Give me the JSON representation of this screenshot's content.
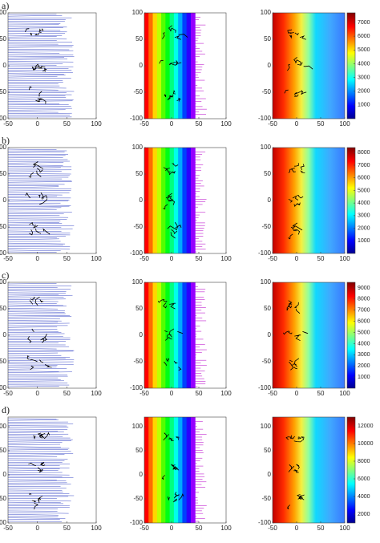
{
  "rows": [
    {
      "label": "a)",
      "panels": [
        {
          "xlim": [
            -50,
            100
          ],
          "ylim": [
            -100,
            100
          ],
          "xticks": [
            -50,
            0,
            50,
            100
          ],
          "yticks": [
            -100,
            -50,
            0,
            50,
            100
          ]
        },
        {
          "xlim": [
            -50,
            100
          ],
          "ylim": [
            -100,
            100
          ],
          "xticks": [
            -50,
            0,
            50,
            100
          ],
          "yticks": [
            -100,
            -50,
            0,
            50,
            100
          ]
        },
        {
          "xlim": [
            -50,
            100
          ],
          "ylim": [
            -100,
            100
          ],
          "xticks": [
            -50,
            0,
            50,
            100
          ],
          "yticks": [
            -100,
            -50,
            0,
            50,
            100
          ],
          "colorbar": {
            "clim": [
              0,
              7700
            ],
            "ticks": [
              1000,
              2000,
              3000,
              4000,
              5000,
              6000,
              7000
            ]
          }
        }
      ]
    },
    {
      "label": "b)",
      "panels": [
        {
          "xlim": [
            -50,
            100
          ],
          "ylim": [
            -100,
            100
          ],
          "xticks": [
            -50,
            0,
            50,
            100
          ],
          "yticks": [
            -100,
            -50,
            0,
            50,
            100
          ]
        },
        {
          "xlim": [
            -50,
            100
          ],
          "ylim": [
            -100,
            100
          ],
          "xticks": [
            -50,
            0,
            50,
            100
          ],
          "yticks": [
            -100,
            -50,
            0,
            50,
            100
          ]
        },
        {
          "xlim": [
            -50,
            100
          ],
          "ylim": [
            -100,
            100
          ],
          "xticks": [
            -50,
            0,
            50,
            100
          ],
          "yticks": [
            -100,
            -50,
            0,
            50,
            100
          ],
          "colorbar": {
            "clim": [
              0,
              8400
            ],
            "ticks": [
              1000,
              2000,
              3000,
              4000,
              5000,
              6000,
              7000,
              8000
            ]
          }
        }
      ]
    },
    {
      "label": "c)",
      "panels": [
        {
          "xlim": [
            -50,
            100
          ],
          "ylim": [
            -100,
            100
          ],
          "xticks": [
            -50,
            0,
            50,
            100
          ],
          "yticks": [
            -100,
            -50,
            0,
            50,
            100
          ]
        },
        {
          "xlim": [
            -50,
            100
          ],
          "ylim": [
            -100,
            100
          ],
          "xticks": [
            -50,
            0,
            50,
            100
          ],
          "yticks": [
            -100,
            -50,
            0,
            50,
            100
          ]
        },
        {
          "xlim": [
            -50,
            100
          ],
          "ylim": [
            -100,
            100
          ],
          "xticks": [
            -50,
            0,
            50,
            100
          ],
          "yticks": [
            -100,
            -50,
            0,
            50,
            100
          ],
          "colorbar": {
            "clim": [
              0,
              9500
            ],
            "ticks": [
              1000,
              2000,
              3000,
              4000,
              5000,
              6000,
              7000,
              8000,
              9000
            ]
          }
        }
      ]
    },
    {
      "label": "d)",
      "panels": [
        {
          "xlim": [
            -50,
            100
          ],
          "ylim": [
            -100,
            120
          ],
          "xticks": [
            -50,
            0,
            50,
            100
          ],
          "yticks": [
            -100,
            -50,
            0,
            50,
            100
          ]
        },
        {
          "xlim": [
            -50,
            100
          ],
          "ylim": [
            -100,
            120
          ],
          "xticks": [
            -50,
            0,
            50,
            100
          ],
          "yticks": [
            -100,
            -50,
            0,
            50,
            100
          ]
        },
        {
          "xlim": [
            -50,
            100
          ],
          "ylim": [
            -100,
            120
          ],
          "xticks": [
            -50,
            0,
            50,
            100
          ],
          "yticks": [
            -100,
            -50,
            0,
            50,
            100
          ],
          "colorbar": {
            "clim": [
              1000,
              13000
            ],
            "ticks": [
              2000,
              4000,
              6000,
              8000,
              10000,
              12000
            ]
          }
        }
      ]
    }
  ]
}
